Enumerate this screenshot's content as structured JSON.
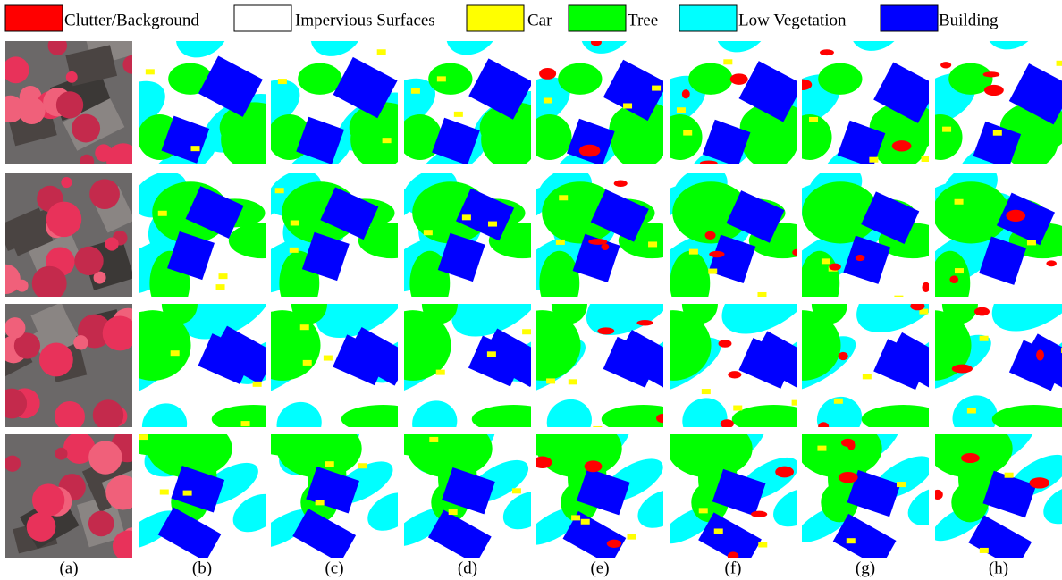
{
  "legend": [
    {
      "label": "Clutter/Background",
      "color": "#ff0000"
    },
    {
      "label": "Impervious Surfaces",
      "color": "#ffffff"
    },
    {
      "label": "Car",
      "color": "#ffff00"
    },
    {
      "label": "Tree",
      "color": "#00ff00"
    },
    {
      "label": "Low Vegetation",
      "color": "#00ffff"
    },
    {
      "label": "Building",
      "color": "#0000ff"
    }
  ],
  "panels": [
    "(a)",
    "(b)",
    "(c)",
    "(d)",
    "(e)",
    "(f)",
    "(g)",
    "(h)"
  ]
}
